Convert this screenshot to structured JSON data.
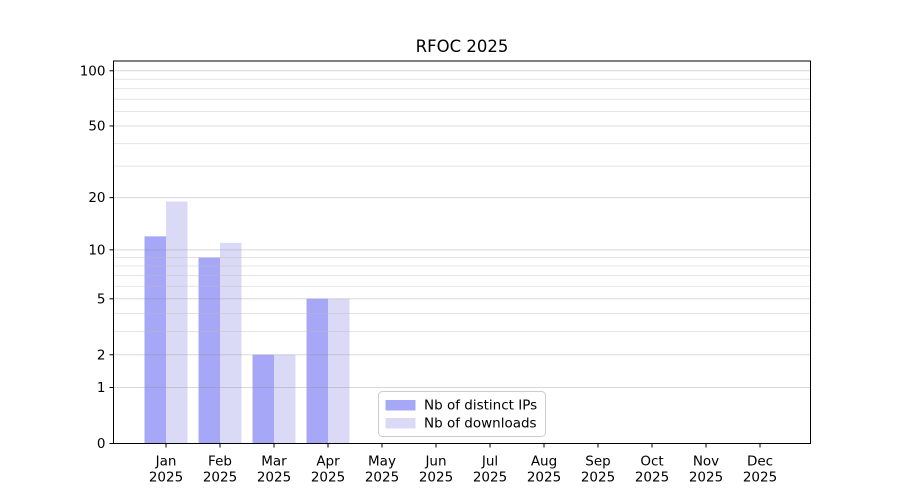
{
  "chart_data": {
    "type": "bar",
    "title": "RFOC 2025",
    "categories": [
      "Jan",
      "Feb",
      "Mar",
      "Apr",
      "May",
      "Jun",
      "Jul",
      "Aug",
      "Sep",
      "Oct",
      "Nov",
      "Dec"
    ],
    "category_year": "2025",
    "series": [
      {
        "name": "Nb of distinct IPs",
        "color": "#a7a7f7",
        "values": [
          12,
          9,
          2,
          5,
          0,
          0,
          0,
          0,
          0,
          0,
          0,
          0
        ]
      },
      {
        "name": "Nb of downloads",
        "color": "#dadaf7",
        "values": [
          19,
          11,
          2,
          5,
          0,
          0,
          0,
          0,
          0,
          0,
          0,
          0
        ]
      }
    ],
    "xlabel": "",
    "ylabel": "",
    "yscale": "log1p",
    "ylim": [
      0,
      113
    ],
    "y_major_ticks": [
      100,
      50,
      20,
      10,
      5,
      2,
      1,
      0
    ],
    "y_minor_gridlines": [
      3,
      4,
      6,
      7,
      8,
      9,
      30,
      40,
      60,
      70,
      80,
      90
    ],
    "grid": true,
    "legend_position": "lower-left-of-center",
    "colors": {
      "major_grid": "#8e8e8e",
      "minor_grid": "#bbbbbb",
      "axis": "#000000",
      "legend_border": "#cccccc",
      "background": "#ffffff"
    }
  }
}
